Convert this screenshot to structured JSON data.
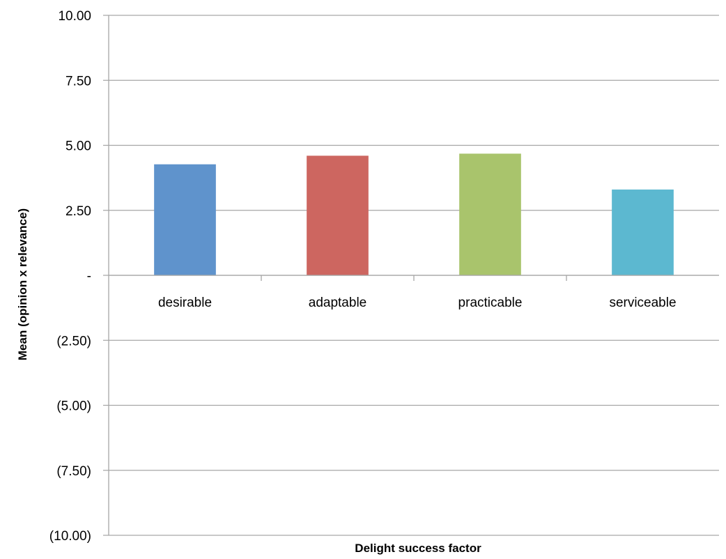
{
  "chart_data": {
    "type": "bar",
    "categories": [
      "desirable",
      "adaptable",
      "practicable",
      "serviceable"
    ],
    "values": [
      4.27,
      4.6,
      4.68,
      3.3
    ],
    "colors": [
      "#5f93cc",
      "#cd6660",
      "#a9c46c",
      "#5cb8d0"
    ],
    "xlabel": "Delight success factor",
    "ylabel": "Mean (opinion x relevance)",
    "ylim": [
      -10,
      10
    ],
    "yticks": [
      10,
      7.5,
      5,
      2.5,
      0,
      -2.5,
      -5,
      -7.5,
      -10
    ],
    "ytick_labels": [
      "10.00",
      "7.50",
      "5.00",
      "2.50",
      "-",
      "(2.50)",
      "(5.00)",
      "(7.50)",
      "(10.00)"
    ],
    "grid": true,
    "gridline_color": "#a6a6a6"
  }
}
